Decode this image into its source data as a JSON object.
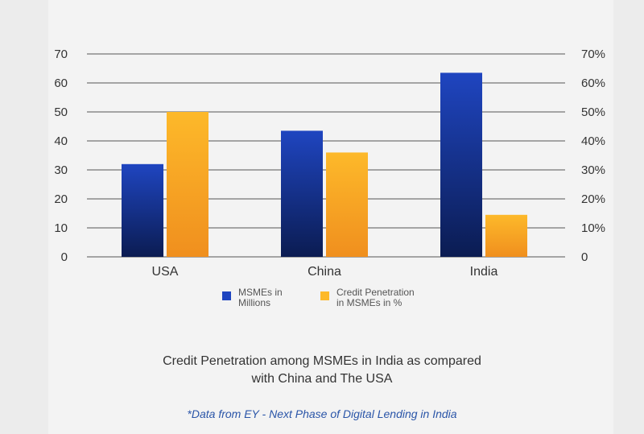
{
  "colors": {
    "msme_top": "#1f45c0",
    "msme_bottom": "#0b1c52",
    "credit_top": "#fdb92a",
    "credit_bottom": "#f08f1e",
    "grid": "#555555",
    "source_text": "#2a55a8"
  },
  "chart_data": {
    "type": "bar",
    "categories": [
      "USA",
      "China",
      "India"
    ],
    "series": [
      {
        "name": "MSMEs in\nMillions",
        "axis": "left",
        "values": [
          32,
          43.5,
          63.5
        ]
      },
      {
        "name": "Credit Penetration\nin MSMEs in %",
        "axis": "right",
        "values": [
          50,
          36,
          14.5
        ]
      }
    ],
    "ylim": [
      0,
      70
    ],
    "y_ticks": [
      "0",
      "10",
      "20",
      "30",
      "40",
      "50",
      "60",
      "70"
    ],
    "y2lim": [
      0,
      70
    ],
    "y2_ticks": [
      "0",
      "10%",
      "20%",
      "30%",
      "40%",
      "50%",
      "60%",
      "70%"
    ],
    "grid": true,
    "legend_position": "bottom",
    "title": "Credit Penetration among MSMEs in India as compared\nwith China and The USA"
  },
  "source_note": "*Data from EY - Next Phase of Digital Lending in India"
}
